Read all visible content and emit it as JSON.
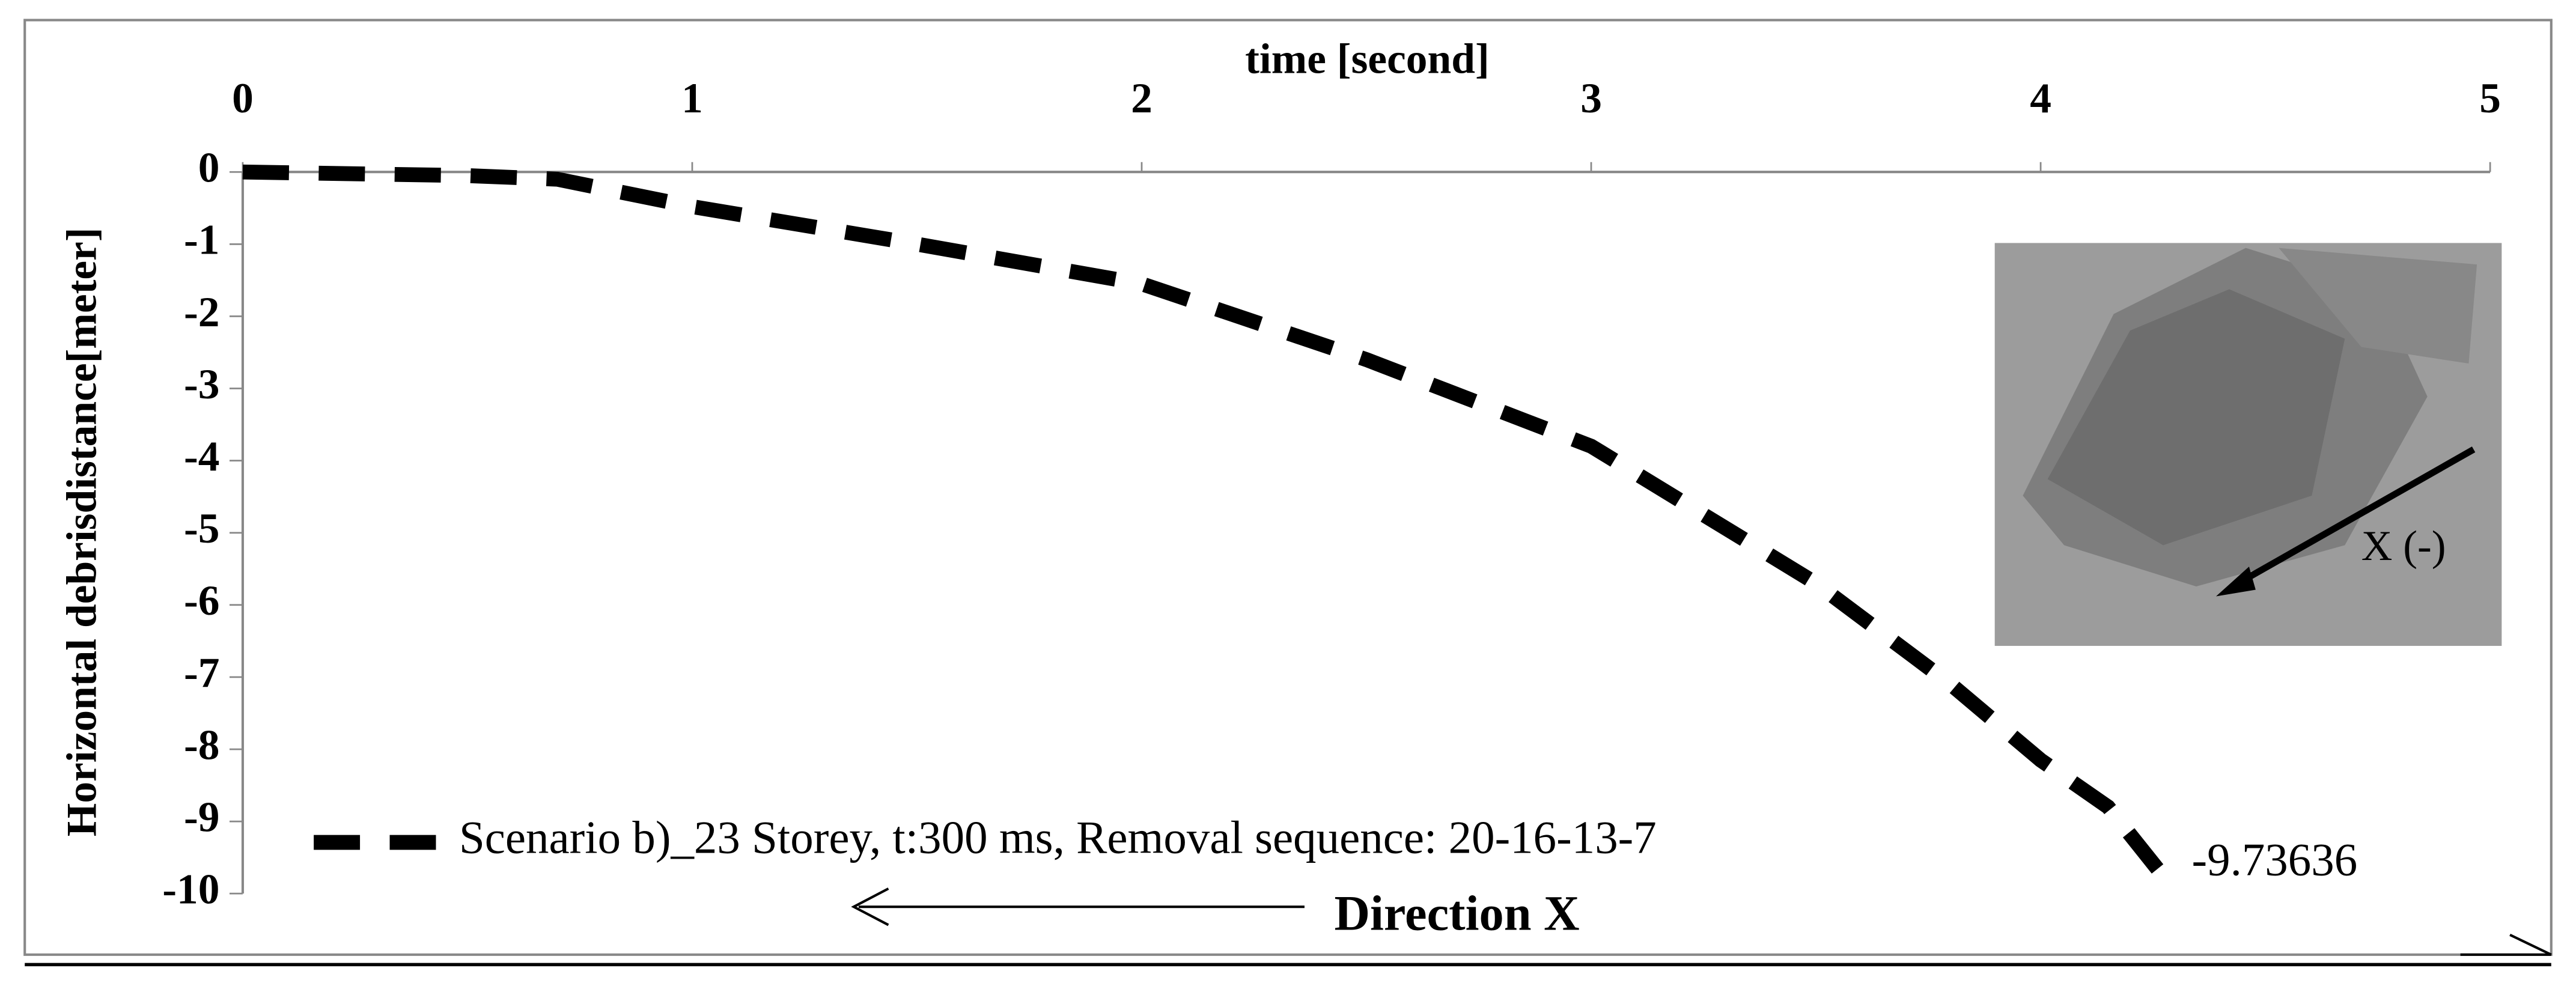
{
  "chart_data": {
    "type": "line",
    "xlabel": "time [second]",
    "ylabel": "Horizontal debrisdistance[meter]",
    "x": [
      0,
      0.5,
      0.7,
      1,
      1.5,
      2,
      2.5,
      3,
      3.5,
      3.8,
      4,
      4.15,
      4.27
    ],
    "series": [
      {
        "name": "Scenario b)_23 Storey, t:300 ms, Removal sequence: 20-16-13-7",
        "color": "#000000",
        "values": [
          0,
          -0.05,
          -0.1,
          -0.48,
          -1.0,
          -1.55,
          -2.6,
          -3.8,
          -5.7,
          -7.1,
          -8.15,
          -8.8,
          -9.73636
        ],
        "value_labels": [
          null,
          null,
          null,
          null,
          null,
          null,
          null,
          null,
          null,
          null,
          null,
          null,
          "-9.73636"
        ]
      }
    ],
    "xlim": [
      0,
      5
    ],
    "ylim": [
      -10,
      0
    ],
    "xticks": [
      0,
      1,
      2,
      3,
      4,
      5
    ],
    "yticks": [
      0,
      -1,
      -2,
      -3,
      -4,
      -5,
      -6,
      -7,
      -8,
      -9,
      -10
    ],
    "annotations": [
      "Direction X",
      "X (-)"
    ]
  }
}
